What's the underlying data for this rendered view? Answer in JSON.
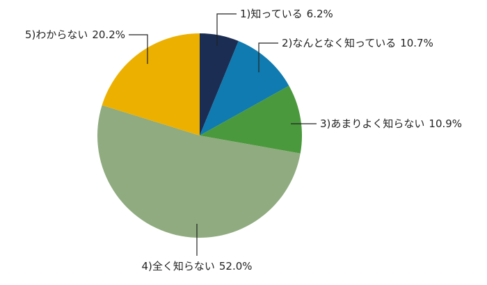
{
  "chart_data": {
    "type": "pie",
    "categories": [
      "1)知っている",
      "2)なんとなく知っている",
      "3)あまりよく知らない",
      "4)全く知らない",
      "5)わからない"
    ],
    "values": [
      6.2,
      10.7,
      10.9,
      52.0,
      20.2
    ],
    "value_labels": [
      "6.2%",
      "10.7%",
      "10.9%",
      "52.0%",
      "20.2%"
    ],
    "colors": [
      "#1b2d52",
      "#0f7bb1",
      "#4a993c",
      "#8fab7f",
      "#ecb000"
    ]
  }
}
